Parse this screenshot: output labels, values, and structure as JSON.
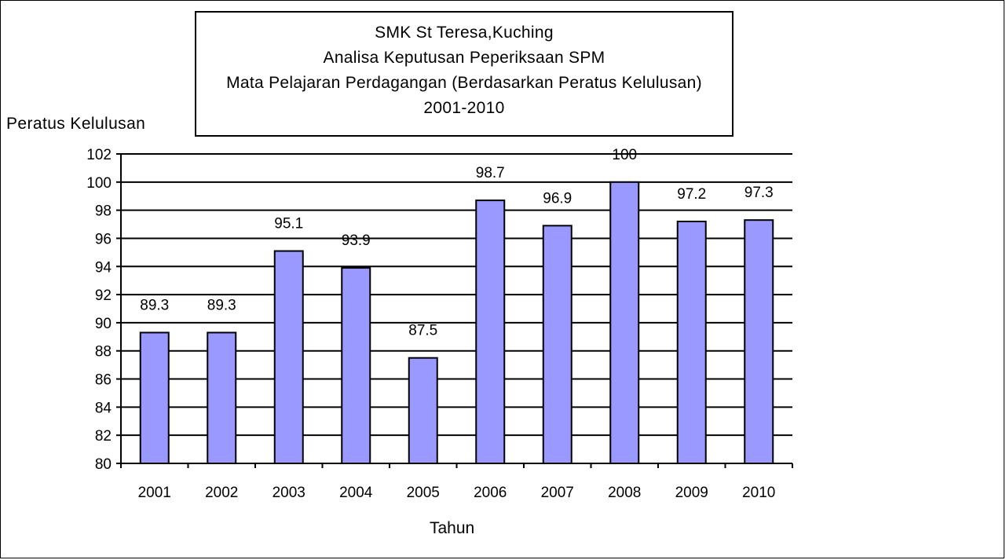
{
  "chart_data": {
    "type": "bar",
    "title_lines": [
      "SMK St Teresa,Kuching",
      "Analisa Keputusan Peperiksaan SPM",
      "Mata Pelajaran Perdagangan (Berdasarkan Peratus Kelulusan)",
      "2001-2010"
    ],
    "xlabel": "Tahun",
    "ylabel": "Peratus Kelulusan",
    "categories": [
      "2001",
      "2002",
      "2003",
      "2004",
      "2005",
      "2006",
      "2007",
      "2008",
      "2009",
      "2010"
    ],
    "values": [
      89.3,
      89.3,
      95.1,
      93.9,
      87.5,
      98.7,
      96.9,
      100,
      97.2,
      97.3
    ],
    "data_labels": [
      "89.3",
      "89.3",
      "95.1",
      "93.9",
      "87.5",
      "98.7",
      "96.9",
      "100",
      "97.2",
      "97.3"
    ],
    "ylim": [
      80,
      102
    ],
    "yticks": [
      80,
      82,
      84,
      86,
      88,
      90,
      92,
      94,
      96,
      98,
      100,
      102
    ],
    "grid": true,
    "legend": "none",
    "bar_color": "#9999ff",
    "bar_border_color": "#000000"
  }
}
